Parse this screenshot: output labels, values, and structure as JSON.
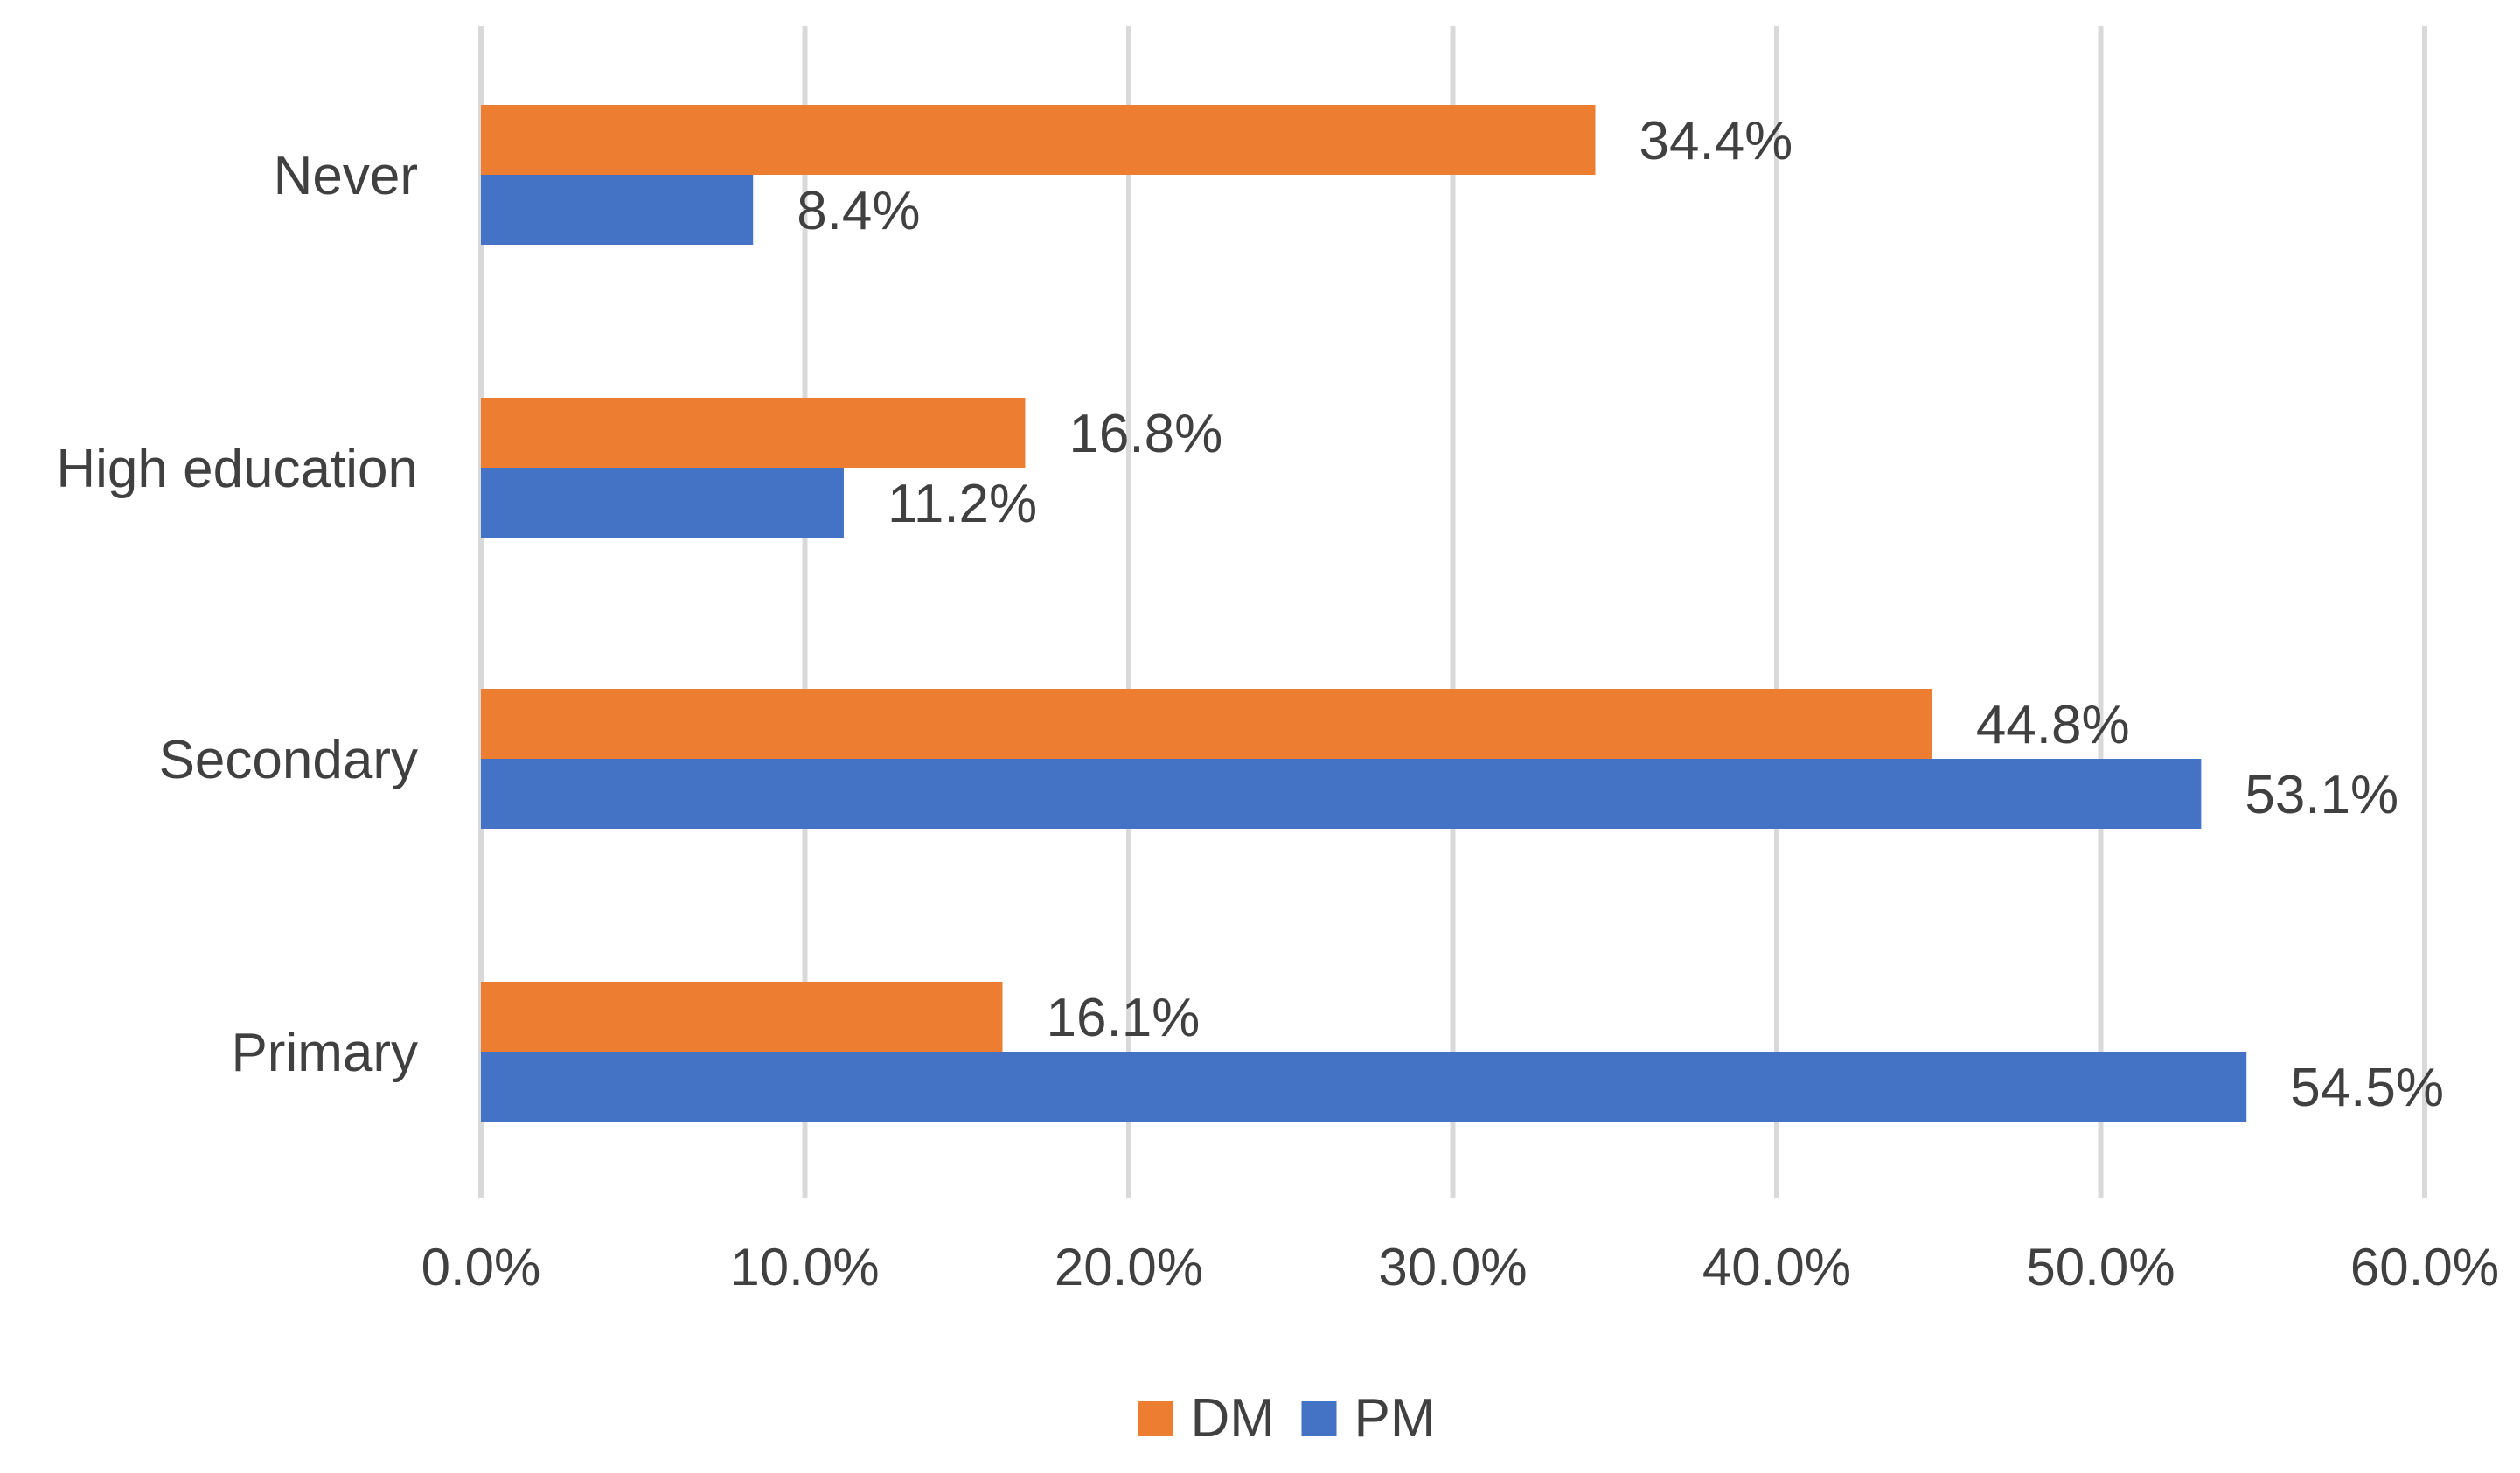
{
  "chart_data": {
    "type": "bar",
    "orientation": "horizontal",
    "categories": [
      "Never",
      "High education",
      "Secondary",
      "Primary"
    ],
    "series": [
      {
        "name": "DM",
        "color": "#ED7D31",
        "values": [
          34.4,
          16.8,
          44.8,
          16.1
        ],
        "labels": [
          "34.4%",
          "16.8%",
          "44.8%",
          "16.1%"
        ]
      },
      {
        "name": "PM",
        "color": "#4472C4",
        "values": [
          8.4,
          11.2,
          53.1,
          54.5
        ],
        "labels": [
          "8.4%",
          "11.2%",
          "53.1%",
          "54.5%"
        ]
      }
    ],
    "xlim": [
      0,
      60
    ],
    "x_ticks": [
      0,
      10,
      20,
      30,
      40,
      50,
      60
    ],
    "x_tick_labels": [
      "0.0%",
      "10.0%",
      "20.0%",
      "30.0%",
      "40.0%",
      "50.0%",
      "60.0%"
    ],
    "grid": true,
    "legend_position": "bottom",
    "title": "",
    "xlabel": "",
    "ylabel": ""
  }
}
